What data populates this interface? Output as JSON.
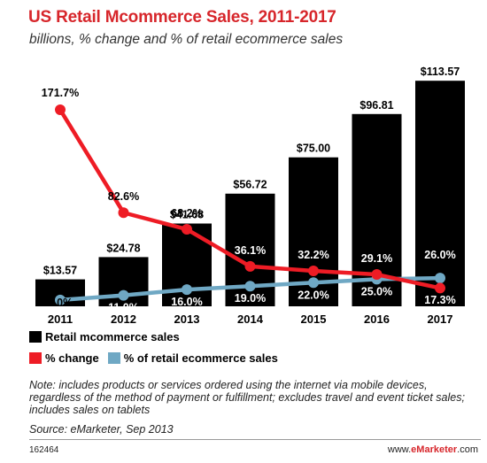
{
  "chart_data": {
    "type": "bar",
    "title": "US Retail Mcommerce Sales, 2011-2017",
    "subtitle": "billions, % change and % of retail ecommerce sales",
    "categories": [
      "2011",
      "2012",
      "2013",
      "2014",
      "2015",
      "2016",
      "2017"
    ],
    "series": [
      {
        "name": "Retail mcommerce sales",
        "type": "bar",
        "color": "#000000",
        "values": [
          13.57,
          24.78,
          41.68,
          56.72,
          75.0,
          96.81,
          113.57
        ],
        "labels": [
          "$13.57",
          "$24.78",
          "$41.68",
          "$56.72",
          "$75.00",
          "$96.81",
          "$113.57"
        ]
      },
      {
        "name": "% change",
        "type": "line",
        "color": "#ee1c25",
        "values": [
          171.7,
          82.6,
          68.2,
          36.1,
          32.2,
          29.1,
          17.3
        ],
        "labels": [
          "171.7%",
          "82.6%",
          "68.2%",
          "36.1%",
          "32.2%",
          "29.1%",
          "17.3%"
        ]
      },
      {
        "name": "% of retail ecommerce sales",
        "type": "line",
        "color": "#6fa8c4",
        "values": [
          7.0,
          11.0,
          16.0,
          19.0,
          22.0,
          25.0,
          26.0
        ],
        "labels": [
          "7.0%",
          "11.0%",
          "16.0%",
          "19.0%",
          "22.0%",
          "25.0%",
          "26.0%"
        ]
      }
    ],
    "ylim": [
      0,
      115
    ],
    "grid": false,
    "legend_position": "bottom-left"
  },
  "legend": {
    "bars_label": "Retail mcommerce sales",
    "change_label": "% change",
    "share_label": "% of retail ecommerce sales"
  },
  "footer": {
    "note": "Note: includes products or services ordered using the internet via mobile devices, regardless of the method of payment or fulfillment; excludes travel and event ticket sales; includes sales on tablets",
    "source": "Source: eMarketer, Sep 2013",
    "chart_id": "162464",
    "brand_prefix": "www.",
    "brand_name": "eMarketer",
    "brand_suffix": ".com"
  }
}
